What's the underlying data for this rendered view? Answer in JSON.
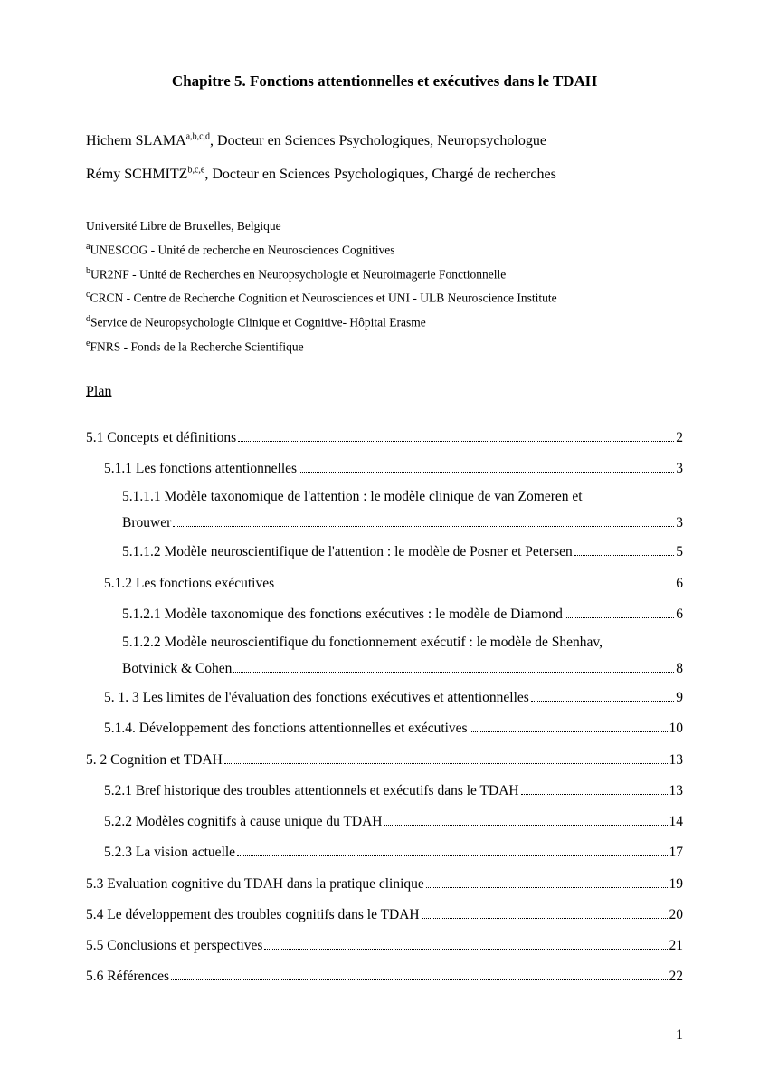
{
  "title": "Chapitre 5. Fonctions attentionnelles et exécutives dans le TDAH",
  "authors": [
    {
      "name": "Hichem SLAMA",
      "sup": "a,b,c,d",
      "rest": ", Docteur en Sciences Psychologiques, Neuropsychologue"
    },
    {
      "name": "Rémy SCHMITZ",
      "sup": "b,c,e",
      "rest": ", Docteur en Sciences Psychologiques, Chargé de recherches"
    }
  ],
  "institution": "Université Libre de Bruxelles, Belgique",
  "affiliations": [
    {
      "sup": "a",
      "text": "UNESCOG - Unité de recherche en Neurosciences Cognitives"
    },
    {
      "sup": "b",
      "text": "UR2NF - Unité de Recherches en Neuropsychologie et Neuroimagerie Fonctionnelle"
    },
    {
      "sup": "c",
      "text": "CRCN - Centre de Recherche Cognition et Neurosciences  et UNI - ULB Neuroscience Institute"
    },
    {
      "sup": "d",
      "text": "Service de Neuropsychologie Clinique et Cognitive- Hôpital Erasme"
    },
    {
      "sup": "e",
      "text": "FNRS - Fonds de la Recherche Scientifique"
    }
  ],
  "plan_label": "Plan",
  "toc": [
    {
      "level": 0,
      "text": "5.1 Concepts et définitions",
      "page": "2"
    },
    {
      "level": 1,
      "text": "5.1.1 Les fonctions attentionnelles",
      "page": "3"
    },
    {
      "level": 2,
      "text1": "5.1.1.1 Modèle taxonomique de l'attention : le modèle clinique de van Zomeren et",
      "text2": "Brouwer",
      "page": "3",
      "multiline": true
    },
    {
      "level": 2,
      "text": "5.1.1.2 Modèle neuroscientifique de l'attention : le modèle de Posner et Petersen",
      "page": "5"
    },
    {
      "level": 1,
      "text": "5.1.2 Les fonctions exécutives",
      "page": "6"
    },
    {
      "level": 2,
      "text": "5.1.2.1 Modèle taxonomique des fonctions exécutives : le modèle de Diamond",
      "page": "6"
    },
    {
      "level": 2,
      "text1": "5.1.2.2 Modèle neuroscientifique du fonctionnement exécutif : le modèle de Shenhav,",
      "text2": "Botvinick & Cohen",
      "page": "8",
      "multiline": true
    },
    {
      "level": 1,
      "text": "5. 1. 3 Les limites de l'évaluation des fonctions exécutives et attentionnelles",
      "page": "9"
    },
    {
      "level": 1,
      "text": "5.1.4. Développement des fonctions attentionnelles et exécutives",
      "page": "10"
    },
    {
      "level": 0,
      "text": "5. 2 Cognition et TDAH",
      "page": "13"
    },
    {
      "level": 1,
      "text": "5.2.1 Bref historique des troubles attentionnels et exécutifs dans le TDAH",
      "page": "13"
    },
    {
      "level": 1,
      "text": "5.2.2 Modèles cognitifs à cause unique du TDAH",
      "page": "14"
    },
    {
      "level": 1,
      "text": "5.2.3 La vision actuelle",
      "page": "17"
    },
    {
      "level": 0,
      "text": "5.3 Evaluation cognitive du TDAH dans la pratique clinique",
      "page": "19"
    },
    {
      "level": 0,
      "text": "5.4 Le développement des troubles cognitifs dans le TDAH",
      "page": "20"
    },
    {
      "level": 0,
      "text": "5.5 Conclusions et perspectives",
      "page": "21"
    },
    {
      "level": 0,
      "text": "5.6 Références",
      "page": "22"
    }
  ],
  "page_number": "1"
}
